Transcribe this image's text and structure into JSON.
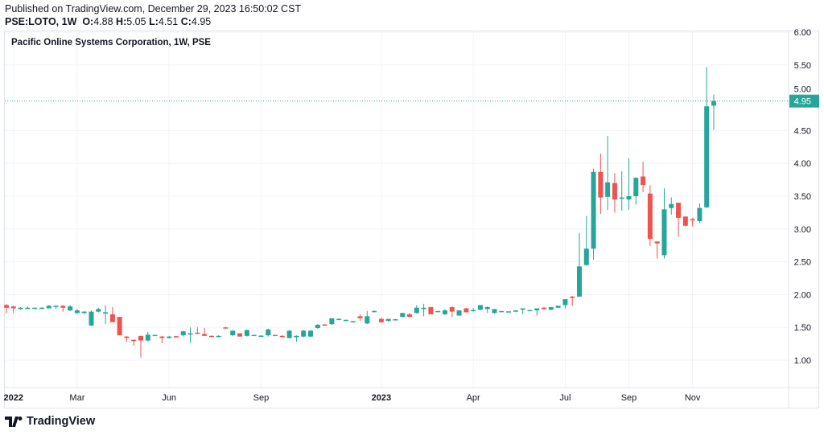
{
  "header": {
    "published": "Published on TradingView.com, December 29, 2023 16:50:02 CST",
    "symbol": "PSE:LOTO, 1W",
    "o_label": "O:",
    "o": "4.88",
    "h_label": "H:",
    "h": "5.05",
    "l_label": "L:",
    "l": "4.51",
    "c_label": "C:",
    "c": "4.95"
  },
  "chart_title": "Pacific Online Systems Corporation, 1W, PSE",
  "brand": "TradingView",
  "colors": {
    "up": "#26a69a",
    "down": "#ef5350",
    "grid": "#f0f3fa",
    "last_price": "#26a69a"
  },
  "chart_data": {
    "type": "candlestick",
    "title": "Pacific Online Systems Corporation, 1W, PSE",
    "ylim": [
      0.6,
      6.0
    ],
    "y_ticks": [
      "6.00",
      "5.50",
      "5.00",
      "4.50",
      "4.00",
      "3.50",
      "3.00",
      "2.50",
      "2.00",
      "1.50",
      "1.00"
    ],
    "y_tick_values": [
      6.0,
      5.5,
      5.0,
      4.5,
      4.0,
      3.5,
      3.0,
      2.5,
      2.0,
      1.5,
      1.0
    ],
    "x_ticks": [
      {
        "label": "2022",
        "index": 1,
        "bold": true
      },
      {
        "label": "Mar",
        "index": 10
      },
      {
        "label": "Jun",
        "index": 23
      },
      {
        "label": "Sep",
        "index": 36
      },
      {
        "label": "2023",
        "index": 53,
        "bold": true
      },
      {
        "label": "Apr",
        "index": 66
      },
      {
        "label": "Jul",
        "index": 79
      },
      {
        "label": "Sep",
        "index": 88
      },
      {
        "label": "Nov",
        "index": 97
      }
    ],
    "last_price": "4.95",
    "last_value": 4.95,
    "ohlc": [
      [
        1.84,
        1.86,
        1.72,
        1.8
      ],
      [
        1.82,
        1.83,
        1.72,
        1.79
      ],
      [
        1.78,
        1.81,
        1.77,
        1.8
      ],
      [
        1.79,
        1.82,
        1.78,
        1.8
      ],
      [
        1.79,
        1.8,
        1.78,
        1.8
      ],
      [
        1.79,
        1.81,
        1.78,
        1.8
      ],
      [
        1.79,
        1.84,
        1.79,
        1.83
      ],
      [
        1.82,
        1.84,
        1.78,
        1.83
      ],
      [
        1.83,
        1.84,
        1.74,
        1.8
      ],
      [
        1.76,
        1.84,
        1.75,
        1.82
      ],
      [
        1.72,
        1.78,
        1.7,
        1.76
      ],
      [
        1.72,
        1.75,
        1.7,
        1.74
      ],
      [
        1.53,
        1.76,
        1.52,
        1.74
      ],
      [
        1.74,
        1.8,
        1.73,
        1.78
      ],
      [
        1.72,
        1.84,
        1.55,
        1.73
      ],
      [
        1.7,
        1.81,
        1.59,
        1.58
      ],
      [
        1.66,
        1.66,
        1.38,
        1.38
      ],
      [
        1.36,
        1.37,
        1.28,
        1.34
      ],
      [
        1.31,
        1.32,
        1.22,
        1.3
      ],
      [
        1.37,
        1.37,
        1.04,
        1.3
      ],
      [
        1.3,
        1.43,
        1.28,
        1.39
      ],
      [
        1.38,
        1.39,
        1.37,
        1.385
      ],
      [
        1.36,
        1.37,
        1.26,
        1.34
      ],
      [
        1.34,
        1.37,
        1.33,
        1.36
      ],
      [
        1.365,
        1.37,
        1.35,
        1.36
      ],
      [
        1.38,
        1.45,
        1.36,
        1.44
      ],
      [
        1.4,
        1.5,
        1.26,
        1.41
      ],
      [
        1.42,
        1.5,
        1.4,
        1.41
      ],
      [
        1.4,
        1.49,
        1.37,
        1.37
      ],
      [
        1.37,
        1.38,
        1.36,
        1.36
      ],
      [
        1.36,
        1.38,
        1.35,
        1.37
      ],
      [
        1.5,
        1.51,
        1.49,
        1.49
      ],
      [
        1.38,
        1.46,
        1.37,
        1.45
      ],
      [
        1.41,
        1.41,
        1.36,
        1.36
      ],
      [
        1.37,
        1.47,
        1.36,
        1.46
      ],
      [
        1.38,
        1.39,
        1.37,
        1.385
      ],
      [
        1.37,
        1.38,
        1.36,
        1.375
      ],
      [
        1.38,
        1.48,
        1.36,
        1.47
      ],
      [
        1.385,
        1.39,
        1.37,
        1.37
      ],
      [
        1.37,
        1.38,
        1.35,
        1.355
      ],
      [
        1.34,
        1.46,
        1.33,
        1.45
      ],
      [
        1.36,
        1.38,
        1.28,
        1.37
      ],
      [
        1.36,
        1.46,
        1.35,
        1.45
      ],
      [
        1.36,
        1.46,
        1.35,
        1.45
      ],
      [
        1.49,
        1.55,
        1.48,
        1.54
      ],
      [
        1.545,
        1.55,
        1.53,
        1.53
      ],
      [
        1.55,
        1.64,
        1.54,
        1.64
      ],
      [
        1.625,
        1.64,
        1.61,
        1.63
      ],
      [
        1.61,
        1.62,
        1.6,
        1.615
      ],
      [
        1.59,
        1.6,
        1.58,
        1.595
      ],
      [
        1.67,
        1.7,
        1.6,
        1.64
      ],
      [
        1.56,
        1.75,
        1.55,
        1.67
      ],
      [
        1.74,
        1.76,
        1.73,
        1.75
      ],
      [
        1.63,
        1.65,
        1.57,
        1.58
      ],
      [
        1.6,
        1.63,
        1.59,
        1.63
      ],
      [
        1.62,
        1.63,
        1.61,
        1.625
      ],
      [
        1.66,
        1.72,
        1.65,
        1.72
      ],
      [
        1.7,
        1.72,
        1.66,
        1.66
      ],
      [
        1.72,
        1.84,
        1.71,
        1.8
      ],
      [
        1.78,
        1.86,
        1.67,
        1.8
      ],
      [
        1.81,
        1.81,
        1.7,
        1.7
      ],
      [
        1.745,
        1.75,
        1.74,
        1.75
      ],
      [
        1.7,
        1.78,
        1.69,
        1.76
      ],
      [
        1.81,
        1.82,
        1.66,
        1.74
      ],
      [
        1.68,
        1.76,
        1.68,
        1.76
      ],
      [
        1.79,
        1.8,
        1.73,
        1.73
      ],
      [
        1.76,
        1.8,
        1.74,
        1.765
      ],
      [
        1.77,
        1.84,
        1.76,
        1.84
      ],
      [
        1.78,
        1.82,
        1.72,
        1.81
      ],
      [
        1.72,
        1.78,
        1.71,
        1.78
      ],
      [
        1.74,
        1.75,
        1.73,
        1.75
      ],
      [
        1.74,
        1.745,
        1.73,
        1.745
      ],
      [
        1.74,
        1.76,
        1.73,
        1.76
      ],
      [
        1.77,
        1.79,
        1.7,
        1.79
      ],
      [
        1.76,
        1.765,
        1.75,
        1.765
      ],
      [
        1.76,
        1.79,
        1.68,
        1.79
      ],
      [
        1.8,
        1.81,
        1.77,
        1.78
      ],
      [
        1.77,
        1.81,
        1.76,
        1.81
      ],
      [
        1.8,
        1.83,
        1.79,
        1.83
      ],
      [
        1.84,
        1.93,
        1.79,
        1.93
      ],
      [
        1.97,
        1.98,
        1.83,
        1.95
      ],
      [
        1.97,
        2.94,
        1.96,
        2.43
      ],
      [
        2.45,
        3.2,
        2.44,
        2.7
      ],
      [
        2.7,
        3.92,
        2.53,
        3.87
      ],
      [
        3.87,
        4.15,
        3.23,
        3.48
      ],
      [
        3.49,
        4.42,
        3.29,
        3.71
      ],
      [
        3.7,
        3.85,
        3.25,
        3.45
      ],
      [
        3.46,
        3.88,
        3.28,
        3.48
      ],
      [
        3.45,
        4.08,
        3.29,
        3.5
      ],
      [
        3.5,
        3.79,
        3.37,
        3.78
      ],
      [
        3.8,
        4.03,
        3.56,
        3.67
      ],
      [
        3.54,
        3.67,
        2.74,
        2.85
      ],
      [
        2.81,
        2.81,
        2.55,
        2.78
      ],
      [
        2.6,
        3.62,
        2.55,
        3.3
      ],
      [
        3.32,
        3.48,
        3.22,
        3.38
      ],
      [
        3.4,
        3.4,
        2.88,
        3.17
      ],
      [
        3.19,
        3.19,
        3.04,
        3.05
      ],
      [
        3.15,
        3.17,
        3.04,
        3.13
      ],
      [
        3.12,
        3.39,
        3.09,
        3.32
      ],
      [
        3.33,
        5.47,
        3.32,
        4.87
      ],
      [
        4.88,
        5.05,
        4.51,
        4.95
      ]
    ]
  }
}
